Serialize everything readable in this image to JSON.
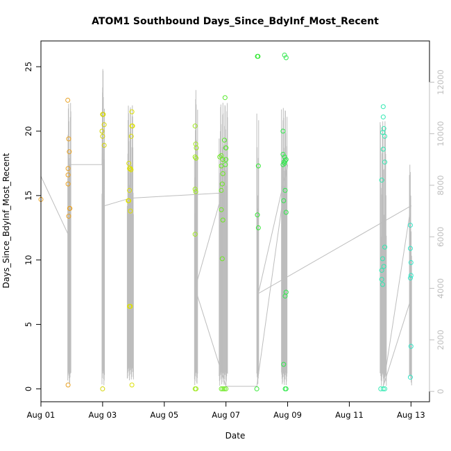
{
  "chart_data": {
    "type": "scatter",
    "title": "ATOM1 Southbound Days_Since_BdyInf_Most_Recent",
    "xlabel": "Date",
    "ylabel": "Days_Since_BdyInf_Most_Recent",
    "xlim": [
      0,
      12.6
    ],
    "ylim": [
      -1,
      27
    ],
    "x_ticks": [
      {
        "value": 0,
        "label": "Aug 01"
      },
      {
        "value": 2,
        "label": "Aug 03"
      },
      {
        "value": 4,
        "label": "Aug 05"
      },
      {
        "value": 6,
        "label": "Aug 07"
      },
      {
        "value": 8,
        "label": "Aug 09"
      },
      {
        "value": 10,
        "label": "Aug 11"
      },
      {
        "value": 12,
        "label": "Aug 13"
      }
    ],
    "y_ticks": [
      0,
      5,
      10,
      15,
      20,
      25
    ],
    "y2_lim": [
      -400,
      13600
    ],
    "y2_ticks": [
      0,
      2000,
      4000,
      6000,
      8000,
      10000,
      12000
    ],
    "grid": false,
    "secondary_color": "#bdbdbd",
    "point_groups": [
      {
        "color": "#e8a020",
        "points": [
          [
            0.0,
            14.7
          ],
          [
            0.87,
            22.4
          ],
          [
            0.88,
            17.1
          ],
          [
            0.88,
            16.6
          ],
          [
            0.88,
            15.9
          ],
          [
            0.9,
            19.4
          ],
          [
            0.92,
            18.4
          ],
          [
            0.93,
            14.0
          ],
          [
            0.94,
            14.0
          ],
          [
            0.9,
            13.4
          ],
          [
            0.88,
            0.3
          ]
        ]
      },
      {
        "color": "#d4d400",
        "points": [
          [
            2.0,
            21.3
          ],
          [
            2.02,
            21.3
          ],
          [
            1.98,
            20.0
          ],
          [
            2.05,
            20.5
          ],
          [
            2.0,
            19.6
          ],
          [
            2.05,
            18.9
          ],
          [
            2.0,
            0.0
          ]
        ]
      },
      {
        "color": "#dde000",
        "points": [
          [
            2.85,
            17.5
          ],
          [
            2.87,
            17.1
          ],
          [
            2.9,
            17.1
          ],
          [
            2.92,
            17.0
          ],
          [
            2.92,
            17.0
          ],
          [
            2.87,
            15.4
          ],
          [
            2.83,
            14.6
          ],
          [
            2.85,
            14.6
          ],
          [
            2.9,
            13.8
          ],
          [
            2.9,
            6.4
          ],
          [
            2.87,
            6.4
          ],
          [
            2.95,
            21.5
          ],
          [
            2.95,
            20.4
          ],
          [
            2.97,
            20.4
          ],
          [
            2.93,
            19.6
          ],
          [
            2.95,
            0.3
          ]
        ]
      },
      {
        "color": "#9ee81a",
        "points": [
          [
            5.0,
            20.4
          ],
          [
            5.02,
            19.0
          ],
          [
            5.04,
            18.7
          ],
          [
            5.0,
            18.0
          ],
          [
            5.03,
            17.9
          ],
          [
            5.0,
            15.5
          ],
          [
            5.02,
            15.3
          ],
          [
            5.0,
            12.0
          ],
          [
            5.0,
            0.0
          ],
          [
            5.03,
            0.0
          ]
        ]
      },
      {
        "color": "#6ae81e",
        "points": [
          [
            5.8,
            18.0
          ],
          [
            5.85,
            18.1
          ],
          [
            5.9,
            17.8
          ],
          [
            5.85,
            17.3
          ],
          [
            5.9,
            16.7
          ],
          [
            5.85,
            15.4
          ],
          [
            5.88,
            15.9
          ],
          [
            5.85,
            13.9
          ],
          [
            5.9,
            13.1
          ],
          [
            5.88,
            10.1
          ],
          [
            5.85,
            0.0
          ],
          [
            5.9,
            0.0
          ],
          [
            5.95,
            0.0
          ],
          [
            6.0,
            0.0
          ]
        ]
      },
      {
        "color": "#55e82a",
        "points": [
          [
            5.97,
            22.6
          ],
          [
            5.95,
            19.3
          ],
          [
            6.0,
            18.7
          ],
          [
            6.0,
            17.8
          ],
          [
            5.98,
            17.4
          ],
          [
            6.0,
            18.7
          ]
        ]
      },
      {
        "color": "#33e833",
        "points": [
          [
            7.02,
            25.8
          ],
          [
            7.04,
            25.8
          ],
          [
            7.05,
            17.3
          ],
          [
            7.02,
            13.5
          ],
          [
            7.05,
            12.5
          ],
          [
            7.0,
            0.0
          ]
        ]
      },
      {
        "color": "#2ee84a",
        "points": [
          [
            7.9,
            25.9
          ],
          [
            7.95,
            25.7
          ],
          [
            7.85,
            20.0
          ],
          [
            7.85,
            18.2
          ],
          [
            7.9,
            18.0
          ],
          [
            7.92,
            17.7
          ],
          [
            7.9,
            17.5
          ],
          [
            7.95,
            17.8
          ],
          [
            7.88,
            17.6
          ],
          [
            7.85,
            17.4
          ],
          [
            7.92,
            15.4
          ],
          [
            7.87,
            14.6
          ],
          [
            7.95,
            13.7
          ],
          [
            7.95,
            7.5
          ],
          [
            7.92,
            7.2
          ],
          [
            7.87,
            1.9
          ],
          [
            7.92,
            0.0
          ],
          [
            7.95,
            0.0
          ]
        ]
      },
      {
        "color": "#2ee8b0",
        "points": [
          [
            11.05,
            16.2
          ],
          [
            11.1,
            21.9
          ],
          [
            11.1,
            21.1
          ],
          [
            11.08,
            19.9
          ],
          [
            11.12,
            20.2
          ],
          [
            11.15,
            19.6
          ],
          [
            11.1,
            18.6
          ],
          [
            11.15,
            17.6
          ],
          [
            11.08,
            10.1
          ],
          [
            11.05,
            9.2
          ],
          [
            11.12,
            9.5
          ],
          [
            11.15,
            11.0
          ],
          [
            11.05,
            8.5
          ],
          [
            11.08,
            8.1
          ],
          [
            11.02,
            0.0
          ],
          [
            11.1,
            0.0
          ],
          [
            11.15,
            0.0
          ]
        ]
      },
      {
        "color": "#2ee8c8",
        "points": [
          [
            11.98,
            12.7
          ],
          [
            11.98,
            10.9
          ],
          [
            12.0,
            9.8
          ],
          [
            12.0,
            8.8
          ],
          [
            11.98,
            8.6
          ],
          [
            12.0,
            3.3
          ],
          [
            11.98,
            0.9
          ]
        ]
      }
    ],
    "secondary_series": {
      "name": "",
      "clusters": [
        {
          "x_start": 0.87,
          "x_end": 0.97,
          "count": 12,
          "y_low": 200,
          "y_high": 11200
        },
        {
          "x_start": 1.98,
          "x_end": 2.06,
          "count": 10,
          "y_low": 200,
          "y_high": 12600
        },
        {
          "x_start": 2.8,
          "x_end": 3.0,
          "count": 24,
          "y_low": 400,
          "y_high": 11100
        },
        {
          "x_start": 4.98,
          "x_end": 5.08,
          "count": 12,
          "y_low": 200,
          "y_high": 11700
        },
        {
          "x_start": 5.78,
          "x_end": 6.05,
          "count": 30,
          "y_low": 200,
          "y_high": 11200
        },
        {
          "x_start": 7.0,
          "x_end": 7.06,
          "count": 6,
          "y_low": 200,
          "y_high": 11300
        },
        {
          "x_start": 7.8,
          "x_end": 7.98,
          "count": 22,
          "y_low": 200,
          "y_high": 11000
        },
        {
          "x_start": 11.0,
          "x_end": 11.2,
          "count": 20,
          "y_low": 200,
          "y_high": 10500
        },
        {
          "x_start": 11.95,
          "x_end": 12.02,
          "count": 6,
          "y_low": 200,
          "y_high": 8800
        }
      ],
      "trend_path": [
        [
          0.0,
          8350
        ],
        [
          0.92,
          6000
        ],
        [
          0.93,
          8800
        ],
        [
          1.98,
          8800
        ],
        [
          2.0,
          11800
        ],
        [
          2.05,
          7200
        ],
        [
          2.9,
          7500
        ],
        [
          5.88,
          7700
        ],
        [
          5.0,
          4000
        ],
        [
          6.0,
          200
        ],
        [
          7.0,
          200
        ],
        [
          8.0,
          8800
        ],
        [
          7.05,
          3800
        ],
        [
          12.0,
          7200
        ],
        [
          11.1,
          200
        ],
        [
          12.0,
          3600
        ]
      ]
    }
  }
}
